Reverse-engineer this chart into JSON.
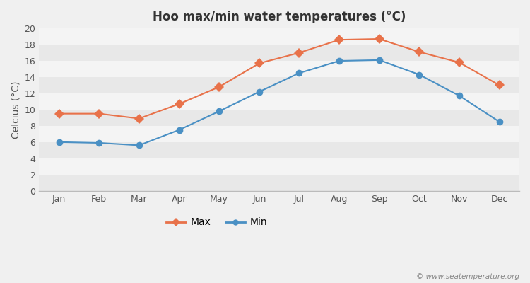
{
  "months": [
    "Jan",
    "Feb",
    "Mar",
    "Apr",
    "May",
    "Jun",
    "Jul",
    "Aug",
    "Sep",
    "Oct",
    "Nov",
    "Dec"
  ],
  "max_temps": [
    9.5,
    9.5,
    8.9,
    10.7,
    12.8,
    15.7,
    17.0,
    18.6,
    18.7,
    17.1,
    15.8,
    13.0
  ],
  "min_temps": [
    6.0,
    5.9,
    5.6,
    7.5,
    9.8,
    12.2,
    14.5,
    16.0,
    16.1,
    14.3,
    11.7,
    8.5
  ],
  "max_color": "#e8724a",
  "min_color": "#4a90c4",
  "title": "Hoo max/min water temperatures (°C)",
  "ylabel": "Celcius (°C)",
  "bg_color": "#f0f0f0",
  "band_colors": [
    "#e8e8e8",
    "#f4f4f4"
  ],
  "ylim": [
    0,
    20
  ],
  "yticks": [
    0,
    2,
    4,
    6,
    8,
    10,
    12,
    14,
    16,
    18,
    20
  ],
  "watermark": "© www.seatemperature.org",
  "legend_max": "Max",
  "legend_min": "Min"
}
